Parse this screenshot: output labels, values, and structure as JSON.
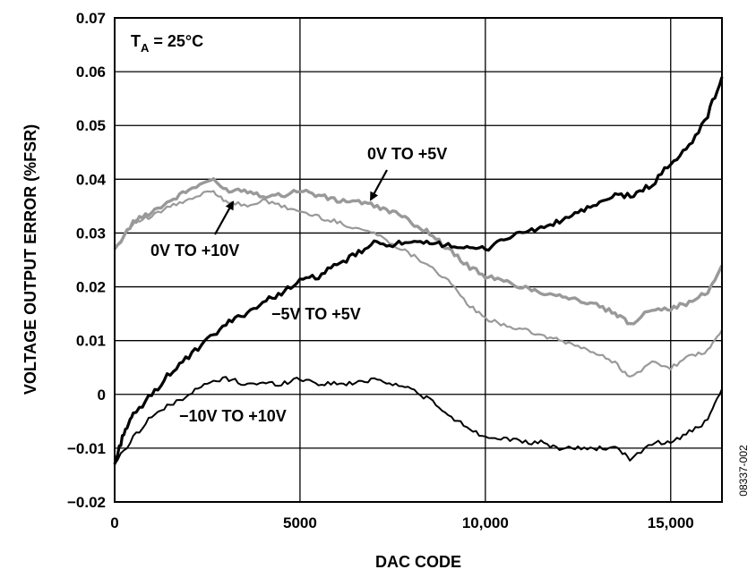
{
  "chart_data": {
    "type": "line",
    "xlabel": "DAC CODE",
    "ylabel": "VOLTAGE OUTPUT ERROR (%FSR)",
    "xlim": [
      0,
      16383
    ],
    "ylim": [
      -0.02,
      0.07
    ],
    "xticks": [
      0,
      5000,
      10000,
      15000
    ],
    "xtick_labels": [
      "0",
      "5000",
      "10,000",
      "15,000"
    ],
    "yticks": [
      -0.02,
      -0.01,
      0,
      0.01,
      0.02,
      0.03,
      0.04,
      0.05,
      0.06,
      0.07
    ],
    "ytick_labels": [
      "−0.02",
      "−0.01",
      "0",
      "0.01",
      "0.02",
      "0.03",
      "0.04",
      "0.05",
      "0.06",
      "0.07"
    ],
    "grid": true,
    "condition": {
      "prefix": "T",
      "subscript": "A",
      "suffix": " = 25°C"
    },
    "figure_id": "08337-002",
    "series": [
      {
        "name": "0V TO +5V",
        "color": "#999999",
        "x": [
          0,
          500,
          1000,
          1500,
          2000,
          2600,
          3000,
          3500,
          4000,
          4500,
          5000,
          5500,
          6000,
          6500,
          7000,
          7500,
          8000,
          8500,
          9000,
          9500,
          10000,
          10500,
          11000,
          11500,
          12000,
          12500,
          13000,
          13500,
          13900,
          14500,
          15000,
          15500,
          16000,
          16383
        ],
        "y": [
          0.027,
          0.032,
          0.034,
          0.036,
          0.038,
          0.04,
          0.038,
          0.038,
          0.037,
          0.037,
          0.038,
          0.037,
          0.036,
          0.036,
          0.035,
          0.034,
          0.032,
          0.03,
          0.027,
          0.024,
          0.022,
          0.021,
          0.02,
          0.019,
          0.0185,
          0.0175,
          0.0165,
          0.015,
          0.013,
          0.016,
          0.016,
          0.017,
          0.019,
          0.024
        ]
      },
      {
        "name": "0V TO +10V",
        "color": "#999999",
        "x": [
          0,
          500,
          1000,
          1500,
          2000,
          2600,
          3000,
          3500,
          4000,
          4500,
          5000,
          5500,
          6000,
          6500,
          7000,
          7500,
          8000,
          8500,
          9000,
          9500,
          10000,
          10500,
          11000,
          11500,
          12000,
          12500,
          13000,
          13500,
          13900,
          14500,
          15000,
          15500,
          16000,
          16383
        ],
        "y": [
          0.027,
          0.032,
          0.033,
          0.035,
          0.036,
          0.038,
          0.036,
          0.035,
          0.036,
          0.035,
          0.034,
          0.033,
          0.032,
          0.031,
          0.03,
          0.028,
          0.026,
          0.024,
          0.021,
          0.017,
          0.014,
          0.013,
          0.012,
          0.011,
          0.01,
          0.009,
          0.0075,
          0.006,
          0.003,
          0.006,
          0.005,
          0.007,
          0.008,
          0.012
        ]
      },
      {
        "name": "−5V TO +5V",
        "color": "#000000",
        "x": [
          0,
          250,
          500,
          1000,
          1500,
          2000,
          2500,
          3000,
          3500,
          4000,
          4500,
          5000,
          5500,
          6000,
          6500,
          7000,
          7500,
          8000,
          8500,
          9000,
          9500,
          10000,
          10500,
          11000,
          11500,
          12000,
          12500,
          13000,
          13500,
          14000,
          14500,
          15000,
          15500,
          16000,
          16383
        ],
        "y": [
          -0.013,
          -0.007,
          -0.004,
          0.0,
          0.004,
          0.007,
          0.01,
          0.013,
          0.015,
          0.017,
          0.019,
          0.021,
          0.022,
          0.024,
          0.026,
          0.028,
          0.028,
          0.028,
          0.028,
          0.028,
          0.027,
          0.027,
          0.029,
          0.03,
          0.031,
          0.032,
          0.034,
          0.035,
          0.037,
          0.037,
          0.039,
          0.043,
          0.046,
          0.052,
          0.059
        ]
      },
      {
        "name": "−10V TO +10V",
        "color": "#000000",
        "x": [
          0,
          500,
          1000,
          1500,
          2000,
          2500,
          3000,
          3500,
          4000,
          4500,
          5000,
          5500,
          6000,
          6500,
          7000,
          7500,
          8000,
          8500,
          9000,
          9500,
          10000,
          10500,
          11000,
          11500,
          12000,
          12500,
          13000,
          13500,
          13900,
          14500,
          15000,
          15500,
          16000,
          16383
        ],
        "y": [
          -0.013,
          -0.008,
          -0.004,
          -0.002,
          0.0,
          0.002,
          0.003,
          0.002,
          0.002,
          0.002,
          0.003,
          0.002,
          0.002,
          0.002,
          0.003,
          0.002,
          0.001,
          -0.001,
          -0.004,
          -0.006,
          -0.008,
          -0.008,
          -0.009,
          -0.009,
          -0.01,
          -0.01,
          -0.01,
          -0.01,
          -0.012,
          -0.009,
          -0.009,
          -0.007,
          -0.005,
          0.001
        ]
      }
    ],
    "annotations": [
      {
        "text": "0V TO +5V",
        "target_series": "0V TO +5V",
        "arrow_to": [
          6850,
          0.0357
        ]
      },
      {
        "text": "0V TO +10V",
        "target_series": "0V TO +10V",
        "arrow_to": [
          3250,
          0.0362
        ]
      },
      {
        "text": "−5V TO +5V",
        "target_series": "−5V TO +5V"
      },
      {
        "text": "−10V TO +10V",
        "target_series": "−10V TO +10V"
      }
    ]
  }
}
